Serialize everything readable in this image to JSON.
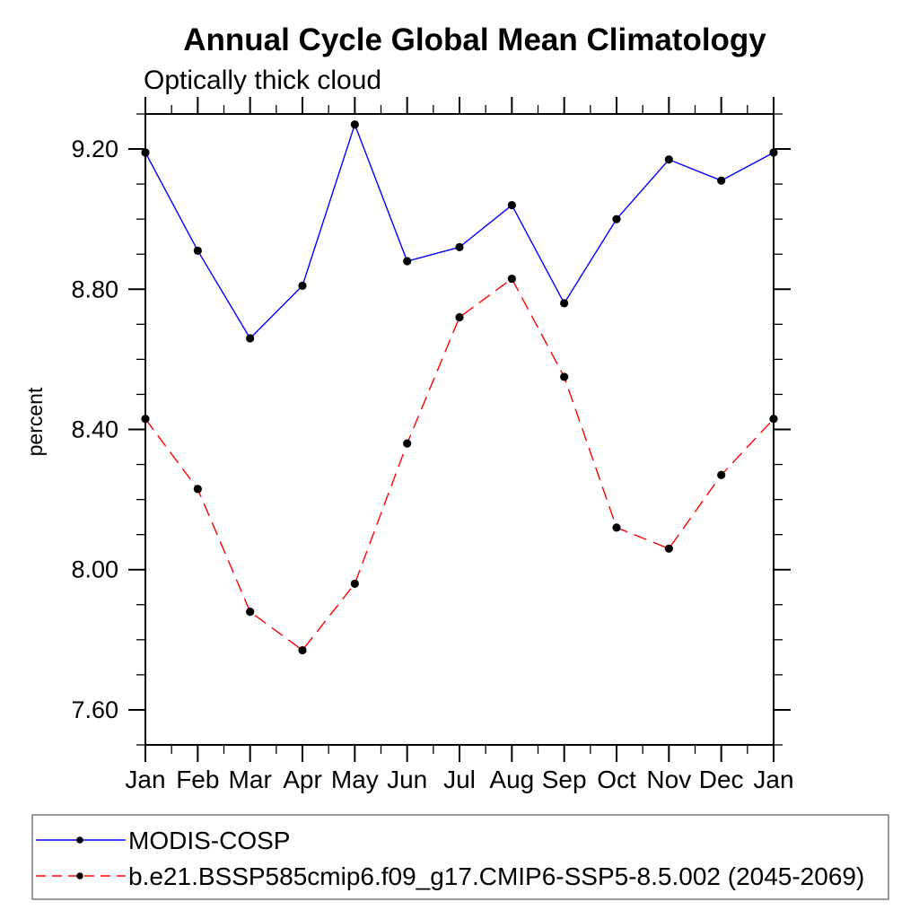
{
  "page": {
    "background_color": "#ffffff",
    "axis_color": "#000000",
    "legend_border_color": "#7a7a7a"
  },
  "chart_data": {
    "type": "line",
    "title": "Annual Cycle Global Mean Climatology",
    "subtitle": "Optically thick cloud",
    "ylabel": "percent",
    "xlabel": "",
    "categories": [
      "Jan",
      "Feb",
      "Mar",
      "Apr",
      "May",
      "Jun",
      "Jul",
      "Aug",
      "Sep",
      "Oct",
      "Nov",
      "Dec",
      "Jan"
    ],
    "ylim": [
      7.5,
      9.3
    ],
    "yticks": [
      {
        "value": 7.6,
        "label": "7.60"
      },
      {
        "value": 8.0,
        "label": "8.00"
      },
      {
        "value": 8.4,
        "label": "8.40"
      },
      {
        "value": 8.8,
        "label": "8.80"
      },
      {
        "value": 9.2,
        "label": "9.20"
      }
    ],
    "y_minor_step": 0.1,
    "x_minor_step": 0.5,
    "grid": false,
    "legend_position": "bottom-left",
    "marker": {
      "shape": "circle",
      "color": "#000000"
    },
    "series": [
      {
        "name": "MODIS-COSP",
        "color": "#0000ff",
        "line_style": "solid",
        "values": [
          9.19,
          8.91,
          8.66,
          8.81,
          9.27,
          8.88,
          8.92,
          9.04,
          8.76,
          9.0,
          9.17,
          9.11,
          9.19
        ]
      },
      {
        "name": "b.e21.BSSP585cmip6.f09_g17.CMIP6-SSP5-8.5.002 (2045-2069)",
        "color": "#ff0000",
        "line_style": "dashed",
        "values": [
          8.43,
          8.23,
          7.88,
          7.77,
          7.96,
          8.36,
          8.72,
          8.83,
          8.55,
          8.12,
          8.06,
          8.27,
          8.43
        ]
      }
    ]
  }
}
